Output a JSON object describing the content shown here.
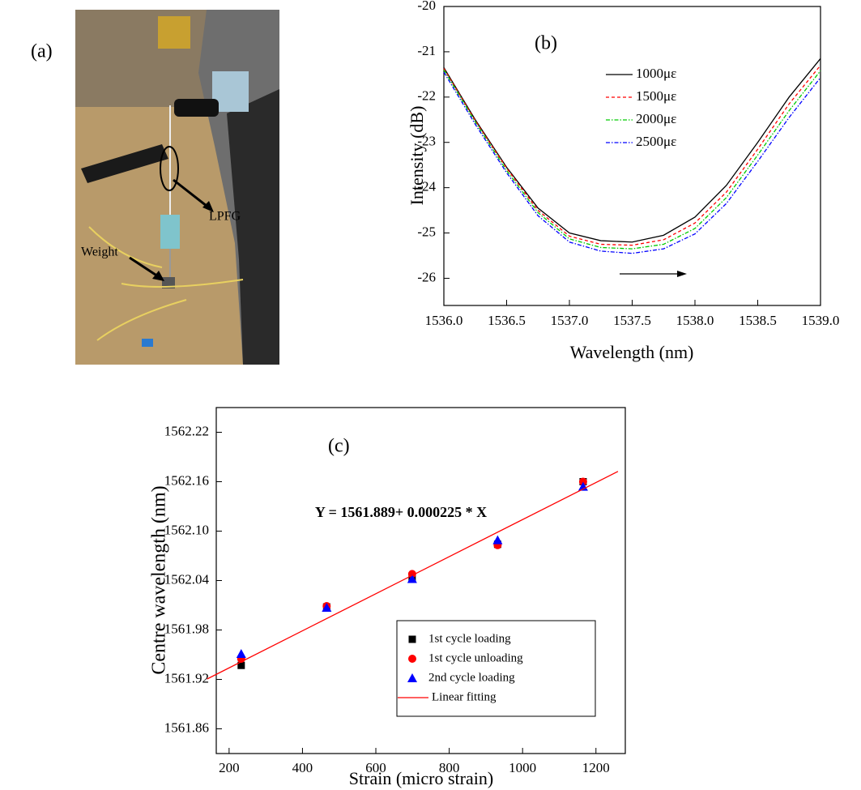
{
  "panel_a": {
    "label": "(a)",
    "annotations": [
      "LPFG",
      "Weight"
    ]
  },
  "chart_data": [
    {
      "type": "line",
      "panel_label": "(b)",
      "x_label": "Wavelength (nm)",
      "y_label": "Intensity (dB)",
      "x": [
        1536.0,
        1536.25,
        1536.5,
        1536.75,
        1537.0,
        1537.25,
        1537.5,
        1537.75,
        1538.0,
        1538.25,
        1538.5,
        1538.75,
        1539.0
      ],
      "series": [
        {
          "name": "1000με",
          "color": "#000000",
          "line_style": "solid",
          "values": [
            -21.35,
            -22.5,
            -23.55,
            -24.45,
            -25.0,
            -25.17,
            -25.2,
            -25.05,
            -24.65,
            -23.95,
            -23.0,
            -22.0,
            -21.15
          ]
        },
        {
          "name": "1500με",
          "color": "#ff0000",
          "line_style": "dashed",
          "values": [
            -21.37,
            -22.52,
            -23.57,
            -24.5,
            -25.07,
            -25.25,
            -25.27,
            -25.15,
            -24.78,
            -24.1,
            -23.15,
            -22.15,
            -21.3
          ]
        },
        {
          "name": "2000με",
          "color": "#00cc00",
          "line_style": "dashdot",
          "values": [
            -21.4,
            -22.55,
            -23.62,
            -24.55,
            -25.13,
            -25.32,
            -25.35,
            -25.25,
            -24.9,
            -24.22,
            -23.28,
            -22.3,
            -21.42
          ]
        },
        {
          "name": "2500με",
          "color": "#0000ff",
          "line_style": "dashdot",
          "values": [
            -21.45,
            -22.6,
            -23.67,
            -24.62,
            -25.2,
            -25.4,
            -25.45,
            -25.35,
            -25.02,
            -24.35,
            -23.42,
            -22.45,
            -21.57
          ]
        }
      ],
      "xlim": [
        1536.0,
        1539.0
      ],
      "xticks": [
        {
          "value": 1536,
          "label": "1536.0"
        },
        1536.5,
        {
          "value": 1537,
          "label": "1537.0"
        },
        1537.5,
        {
          "value": 1538,
          "label": "1538.0"
        },
        1538.5,
        {
          "value": 1539,
          "label": "1539.0"
        }
      ],
      "ylim": [
        -26.6,
        -20
      ],
      "yticks": [
        -20,
        -21,
        -22,
        -23,
        -24,
        -25,
        -26
      ],
      "legend_frame": false
    },
    {
      "type": "scatter",
      "panel_label": "(c)",
      "equation": "Y = 1561.889+ 0.000225 * X",
      "x_label": "Strain (micro strain)",
      "y_label": "Centre wavelength (nm)",
      "series": [
        {
          "name": "1st cycle loading",
          "color": "#000000",
          "marker": "square",
          "x": [
            233,
            466,
            699,
            932,
            1165
          ],
          "values": [
            1561.937,
            1562.008,
            1562.042,
            1562.084,
            1562.16
          ]
        },
        {
          "name": "1st cycle unloading",
          "color": "#ff0000",
          "marker": "circle",
          "x": [
            233,
            466,
            699,
            932,
            1165
          ],
          "values": [
            1561.945,
            1562.009,
            1562.048,
            1562.083,
            1562.16
          ]
        },
        {
          "name": "2nd cycle loading",
          "color": "#0000ff",
          "marker": "triangle",
          "x": [
            233,
            466,
            699,
            932,
            1165
          ],
          "values": [
            1561.951,
            1562.007,
            1562.042,
            1562.089,
            1562.154
          ]
        },
        {
          "name": "Linear fitting",
          "color": "#ff0000",
          "line_style": "solid",
          "x": [
            140,
            1260
          ],
          "values": [
            1561.9205,
            1562.1725
          ]
        }
      ],
      "xlim": [
        165,
        1280
      ],
      "xticks": [
        200,
        400,
        600,
        800,
        1000,
        1200
      ],
      "ylim": [
        1561.83,
        1562.25
      ],
      "yticks": [
        1561.86,
        1561.92,
        1561.98,
        1562.04,
        {
          "value": 1562.1,
          "label": "1562.10"
        },
        1562.16,
        1562.22
      ],
      "legend_frame": true
    }
  ]
}
